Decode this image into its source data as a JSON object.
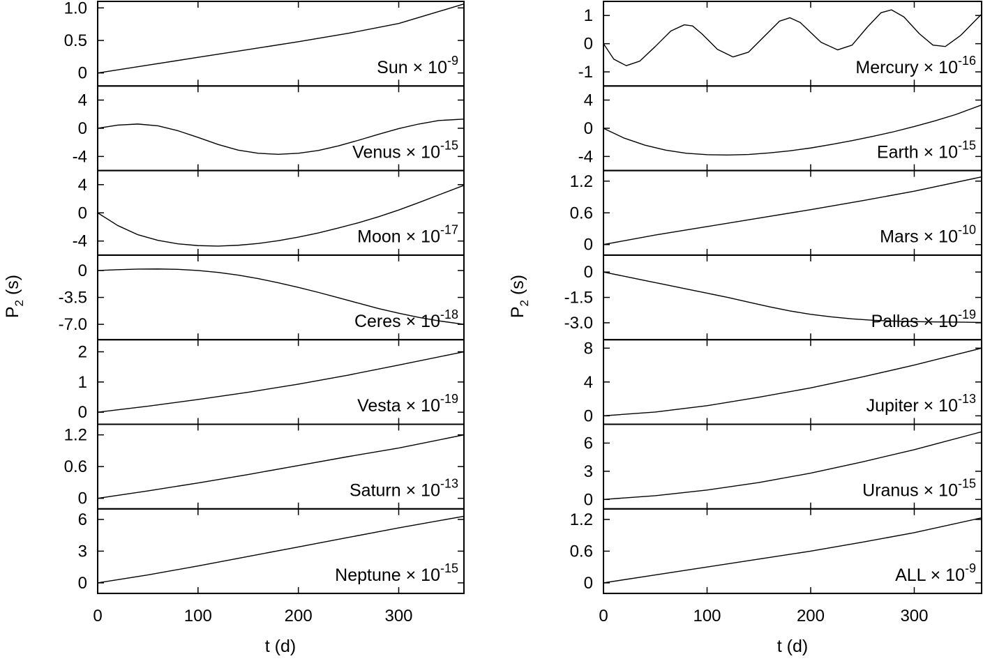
{
  "figure": {
    "ylabel_main": "P",
    "ylabel_sub": "2",
    "ylabel_unit": " (s)",
    "xlabel": "t (d)",
    "times_symbol": "×",
    "x_ticks": [
      "0",
      "100",
      "200",
      "300"
    ],
    "x_tick_values": [
      0,
      100,
      200,
      300
    ],
    "xlim": [
      0,
      365
    ]
  },
  "chart_data": [
    {
      "type": "line",
      "column": "left",
      "label": "Sun",
      "exponent": "-9",
      "ylim": [
        -0.2,
        1.1
      ],
      "yticks": [
        {
          "v": 1.0,
          "t": "1.0"
        },
        {
          "v": 0.5,
          "t": "0.5"
        },
        {
          "v": 0,
          "t": "0"
        }
      ],
      "x": [
        0,
        50,
        100,
        150,
        200,
        250,
        300,
        365
      ],
      "y": [
        0,
        0.12,
        0.24,
        0.36,
        0.48,
        0.61,
        0.76,
        1.06
      ]
    },
    {
      "type": "line",
      "column": "left",
      "label": "Venus",
      "exponent": "-15",
      "ylim": [
        -6,
        6
      ],
      "yticks": [
        {
          "v": 4,
          "t": "4"
        },
        {
          "v": 0,
          "t": "0"
        },
        {
          "v": -4,
          "t": "-4"
        }
      ],
      "x": [
        0,
        20,
        40,
        60,
        80,
        100,
        120,
        140,
        160,
        180,
        200,
        220,
        240,
        260,
        280,
        300,
        320,
        340,
        365
      ],
      "y": [
        0,
        0.45,
        0.6,
        0.35,
        -0.35,
        -1.3,
        -2.3,
        -3.1,
        -3.55,
        -3.7,
        -3.55,
        -3.15,
        -2.5,
        -1.7,
        -0.85,
        -0.05,
        0.6,
        1.1,
        1.3
      ]
    },
    {
      "type": "line",
      "column": "left",
      "label": "Moon",
      "exponent": "-17",
      "ylim": [
        -6,
        6
      ],
      "yticks": [
        {
          "v": 4,
          "t": "4"
        },
        {
          "v": 0,
          "t": "0"
        },
        {
          "v": -4,
          "t": "-4"
        }
      ],
      "x": [
        0,
        20,
        40,
        60,
        80,
        100,
        120,
        140,
        160,
        180,
        200,
        220,
        240,
        260,
        280,
        300,
        320,
        340,
        365
      ],
      "y": [
        0,
        -1.8,
        -3.1,
        -3.9,
        -4.4,
        -4.65,
        -4.72,
        -4.6,
        -4.35,
        -3.95,
        -3.45,
        -2.85,
        -2.15,
        -1.4,
        -0.55,
        0.4,
        1.45,
        2.55,
        3.9
      ]
    },
    {
      "type": "line",
      "column": "left",
      "label": "Ceres",
      "exponent": "-18",
      "ylim": [
        -9,
        2
      ],
      "yticks": [
        {
          "v": 0,
          "t": "0"
        },
        {
          "v": -3.5,
          "t": "-3.5"
        },
        {
          "v": -7.0,
          "t": "-7.0"
        }
      ],
      "x": [
        0,
        20,
        40,
        60,
        80,
        100,
        120,
        140,
        160,
        180,
        200,
        220,
        240,
        260,
        280,
        300,
        320,
        340,
        365
      ],
      "y": [
        0,
        0.1,
        0.18,
        0.2,
        0.15,
        0,
        -0.25,
        -0.6,
        -1.05,
        -1.6,
        -2.2,
        -2.85,
        -3.55,
        -4.25,
        -4.95,
        -5.55,
        -6.1,
        -6.55,
        -7.0
      ]
    },
    {
      "type": "line",
      "column": "left",
      "label": "Vesta",
      "exponent": "-19",
      "ylim": [
        -0.4,
        2.4
      ],
      "yticks": [
        {
          "v": 2,
          "t": "2"
        },
        {
          "v": 1,
          "t": "1"
        },
        {
          "v": 0,
          "t": "0"
        }
      ],
      "x": [
        0,
        50,
        100,
        150,
        200,
        250,
        300,
        365
      ],
      "y": [
        0,
        0.2,
        0.42,
        0.66,
        0.93,
        1.23,
        1.56,
        2.0
      ]
    },
    {
      "type": "line",
      "column": "left",
      "label": "Saturn",
      "exponent": "-13",
      "ylim": [
        -0.2,
        1.4
      ],
      "yticks": [
        {
          "v": 1.2,
          "t": "1.2"
        },
        {
          "v": 0.6,
          "t": "0.6"
        },
        {
          "v": 0,
          "t": "0"
        }
      ],
      "x": [
        0,
        50,
        100,
        150,
        200,
        250,
        300,
        365
      ],
      "y": [
        0,
        0.14,
        0.29,
        0.45,
        0.62,
        0.79,
        0.95,
        1.2
      ]
    },
    {
      "type": "line",
      "column": "left",
      "label": "Neptune",
      "exponent": "-15",
      "ylim": [
        -1,
        7
      ],
      "yticks": [
        {
          "v": 6,
          "t": "6"
        },
        {
          "v": 3,
          "t": "3"
        },
        {
          "v": 0,
          "t": "0"
        }
      ],
      "x": [
        0,
        50,
        100,
        150,
        200,
        250,
        300,
        365
      ],
      "y": [
        0,
        0.75,
        1.6,
        2.5,
        3.4,
        4.3,
        5.2,
        6.3
      ]
    },
    {
      "type": "line",
      "column": "right",
      "label": "Mercury",
      "exponent": "-16",
      "ylim": [
        -1.5,
        1.5
      ],
      "yticks": [
        {
          "v": 1,
          "t": "1"
        },
        {
          "v": 0,
          "t": "0"
        },
        {
          "v": -1,
          "t": "-1"
        }
      ],
      "x": [
        0,
        10,
        22,
        35,
        50,
        65,
        78,
        86,
        95,
        110,
        125,
        140,
        155,
        170,
        180,
        190,
        210,
        226,
        240,
        255,
        268,
        278,
        290,
        305,
        318,
        330,
        345,
        365
      ],
      "y": [
        0,
        -0.55,
        -0.78,
        -0.62,
        -0.1,
        0.45,
        0.67,
        0.63,
        0.35,
        -0.2,
        -0.47,
        -0.3,
        0.25,
        0.8,
        0.92,
        0.75,
        0.05,
        -0.22,
        -0.05,
        0.6,
        1.1,
        1.2,
        0.95,
        0.35,
        -0.05,
        -0.1,
        0.3,
        1.05
      ]
    },
    {
      "type": "line",
      "column": "right",
      "label": "Earth",
      "exponent": "-15",
      "ylim": [
        -6,
        6
      ],
      "yticks": [
        {
          "v": 4,
          "t": "4"
        },
        {
          "v": 0,
          "t": "0"
        },
        {
          "v": -4,
          "t": "-4"
        }
      ],
      "x": [
        0,
        20,
        40,
        60,
        80,
        100,
        120,
        140,
        160,
        180,
        200,
        220,
        240,
        260,
        280,
        300,
        320,
        340,
        365
      ],
      "y": [
        0,
        -1.4,
        -2.4,
        -3.1,
        -3.55,
        -3.75,
        -3.8,
        -3.72,
        -3.5,
        -3.2,
        -2.8,
        -2.3,
        -1.75,
        -1.15,
        -0.5,
        0.25,
        1.05,
        1.95,
        3.3
      ]
    },
    {
      "type": "line",
      "column": "right",
      "label": "Mars",
      "exponent": "-10",
      "ylim": [
        -0.2,
        1.4
      ],
      "yticks": [
        {
          "v": 1.2,
          "t": "1.2"
        },
        {
          "v": 0.6,
          "t": "0.6"
        },
        {
          "v": 0,
          "t": "0"
        }
      ],
      "x": [
        0,
        50,
        100,
        150,
        200,
        250,
        300,
        365
      ],
      "y": [
        0,
        0.18,
        0.34,
        0.5,
        0.66,
        0.83,
        1.01,
        1.28
      ]
    },
    {
      "type": "line",
      "column": "right",
      "label": "Pallas",
      "exponent": "-19",
      "ylim": [
        -4,
        1
      ],
      "yticks": [
        {
          "v": 0,
          "t": "0"
        },
        {
          "v": -1.5,
          "t": "-1.5"
        },
        {
          "v": -3.0,
          "t": "-3.0"
        }
      ],
      "x": [
        0,
        20,
        40,
        60,
        80,
        100,
        120,
        140,
        160,
        180,
        200,
        220,
        240,
        260,
        280,
        300,
        320,
        340,
        365
      ],
      "y": [
        0,
        -0.25,
        -0.5,
        -0.75,
        -1.0,
        -1.25,
        -1.5,
        -1.78,
        -2.05,
        -2.3,
        -2.5,
        -2.65,
        -2.77,
        -2.85,
        -2.9,
        -2.93,
        -2.95,
        -2.96,
        -2.98
      ]
    },
    {
      "type": "line",
      "column": "right",
      "label": "Jupiter",
      "exponent": "-13",
      "ylim": [
        -1,
        9
      ],
      "yticks": [
        {
          "v": 8,
          "t": "8"
        },
        {
          "v": 4,
          "t": "4"
        },
        {
          "v": 0,
          "t": "0"
        }
      ],
      "x": [
        0,
        50,
        100,
        150,
        200,
        250,
        300,
        365
      ],
      "y": [
        0,
        0.45,
        1.2,
        2.2,
        3.3,
        4.6,
        6.0,
        8.0
      ]
    },
    {
      "type": "line",
      "column": "right",
      "label": "Uranus",
      "exponent": "-15",
      "ylim": [
        -1,
        8
      ],
      "yticks": [
        {
          "v": 6,
          "t": "6"
        },
        {
          "v": 3,
          "t": "3"
        },
        {
          "v": 0,
          "t": "0"
        }
      ],
      "x": [
        0,
        50,
        100,
        150,
        200,
        250,
        300,
        365
      ],
      "y": [
        0,
        0.4,
        1.0,
        1.8,
        2.8,
        4.0,
        5.3,
        7.2
      ]
    },
    {
      "type": "line",
      "column": "right",
      "label": "ALL",
      "exponent": "-9",
      "ylim": [
        -0.2,
        1.4
      ],
      "yticks": [
        {
          "v": 1.2,
          "t": "1.2"
        },
        {
          "v": 0.6,
          "t": "0.6"
        },
        {
          "v": 0,
          "t": "0"
        }
      ],
      "x": [
        0,
        50,
        100,
        150,
        200,
        250,
        300,
        365
      ],
      "y": [
        0,
        0.15,
        0.3,
        0.45,
        0.6,
        0.77,
        0.95,
        1.23
      ]
    }
  ]
}
